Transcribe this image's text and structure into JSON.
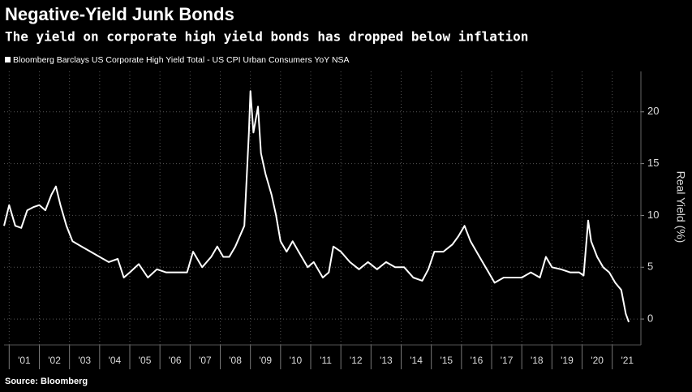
{
  "chart_data": {
    "type": "line",
    "title": "Negative-Yield Junk Bonds",
    "subtitle": "The yield on corporate high yield bonds has dropped below inflation",
    "y_label": "Real Yield (%)",
    "source": "Source: Bloomberg",
    "grid": true,
    "xlim": [
      2000.83,
      2021.95
    ],
    "ylim": [
      -2.5,
      23.9
    ],
    "yticks": [
      0,
      5,
      10,
      15,
      20
    ],
    "xticks": [
      {
        "value": 2001,
        "label": "'01"
      },
      {
        "value": 2002,
        "label": "'02"
      },
      {
        "value": 2003,
        "label": "'03"
      },
      {
        "value": 2004,
        "label": "'04"
      },
      {
        "value": 2005,
        "label": "'05"
      },
      {
        "value": 2006,
        "label": "'06"
      },
      {
        "value": 2007,
        "label": "'07"
      },
      {
        "value": 2008,
        "label": "'08"
      },
      {
        "value": 2009,
        "label": "'09"
      },
      {
        "value": 2010,
        "label": "'10"
      },
      {
        "value": 2011,
        "label": "'11"
      },
      {
        "value": 2012,
        "label": "'12"
      },
      {
        "value": 2013,
        "label": "'13"
      },
      {
        "value": 2014,
        "label": "'14"
      },
      {
        "value": 2015,
        "label": "'15"
      },
      {
        "value": 2016,
        "label": "'16"
      },
      {
        "value": 2017,
        "label": "'17"
      },
      {
        "value": 2018,
        "label": "'18"
      },
      {
        "value": 2019,
        "label": "'19"
      },
      {
        "value": 2020,
        "label": "'20"
      },
      {
        "value": 2021,
        "label": "'21"
      }
    ],
    "x": [
      2000.83,
      2001.0,
      2001.2,
      2001.4,
      2001.6,
      2001.8,
      2002.0,
      2002.2,
      2002.4,
      2002.55,
      2002.7,
      2002.9,
      2003.1,
      2003.4,
      2003.7,
      2004.0,
      2004.3,
      2004.6,
      2004.8,
      2005.0,
      2005.3,
      2005.6,
      2005.9,
      2006.2,
      2006.6,
      2006.9,
      2007.1,
      2007.4,
      2007.7,
      2007.9,
      2008.1,
      2008.3,
      2008.5,
      2008.8,
      2008.95,
      2009.0,
      2009.1,
      2009.25,
      2009.35,
      2009.5,
      2009.7,
      2009.85,
      2010.0,
      2010.2,
      2010.4,
      2010.6,
      2010.9,
      2011.1,
      2011.4,
      2011.6,
      2011.75,
      2012.0,
      2012.3,
      2012.6,
      2012.9,
      2013.2,
      2013.5,
      2013.8,
      2014.1,
      2014.4,
      2014.7,
      2014.9,
      2015.1,
      2015.4,
      2015.7,
      2015.9,
      2016.1,
      2016.3,
      2016.6,
      2016.9,
      2017.1,
      2017.4,
      2017.7,
      2018.0,
      2018.3,
      2018.6,
      2018.8,
      2019.0,
      2019.3,
      2019.6,
      2019.9,
      2020.05,
      2020.2,
      2020.3,
      2020.5,
      2020.7,
      2020.9,
      2021.1,
      2021.3,
      2021.45,
      2021.55
    ],
    "series": [
      {
        "name": "Bloomberg Barclays US Corporate High Yield Total - US CPI Urban Consumers YoY NSA",
        "color": "#ffffff",
        "values": [
          9,
          11,
          9,
          8.8,
          10.5,
          10.8,
          11,
          10.5,
          12,
          12.8,
          11,
          9,
          7.5,
          7,
          6.5,
          6,
          5.5,
          5.8,
          4,
          4.5,
          5.3,
          4,
          4.8,
          4.5,
          4.5,
          4.5,
          6.5,
          5,
          6,
          7,
          6,
          6,
          7,
          9,
          18,
          22,
          18,
          20.5,
          16,
          14,
          12,
          10,
          7.5,
          6.5,
          7.5,
          6.5,
          5,
          5.5,
          4,
          4.5,
          7,
          6.5,
          5.5,
          4.8,
          5.5,
          4.8,
          5.5,
          5,
          5,
          4,
          3.7,
          4.8,
          6.5,
          6.5,
          7.2,
          8,
          9,
          7.5,
          6,
          4.5,
          3.5,
          4,
          4,
          4,
          4.5,
          4,
          6,
          5,
          4.8,
          4.5,
          4.5,
          4.2,
          9.5,
          7.5,
          6,
          5,
          4.5,
          3.5,
          2.8,
          0.5,
          -0.3
        ]
      }
    ]
  }
}
